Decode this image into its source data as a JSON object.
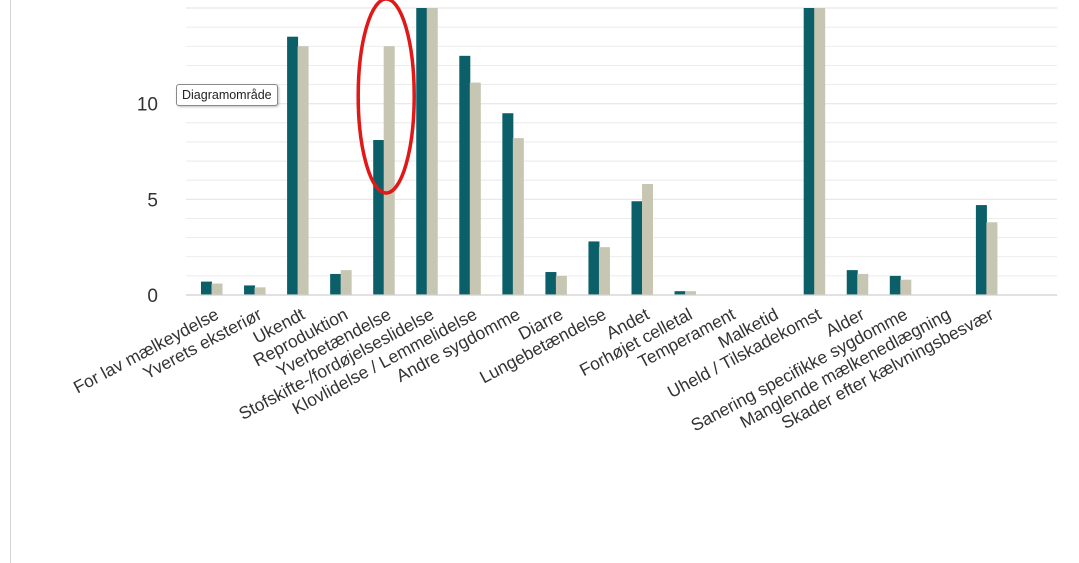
{
  "tooltip": {
    "text": "Diagramområde"
  },
  "colors": {
    "series1": "#0b5f68",
    "series2": "#c6c6b2",
    "highlight": "#e01818",
    "grid": "#e6e6e6",
    "axis": "#cfcfcf"
  },
  "highlight": {
    "shape": "ellipse",
    "category": "Yverbetændelse"
  },
  "chart_data": {
    "type": "bar",
    "title": "",
    "xlabel": "",
    "ylabel": "",
    "ylim": [
      0,
      15
    ],
    "yticks": [
      0,
      5,
      10
    ],
    "grid": true,
    "legend": "none",
    "categories": [
      "For lav mælkeydelse",
      "Yverets eksteriør",
      "Ukendt",
      "Reproduktion",
      "Yverbetændelse",
      "Stofskifte-/fordøjelseslidelse",
      "Klovlidelse / Lemmelidelse",
      "Andre sygdomme",
      "Diarre",
      "Lungebetændelse",
      "Andet",
      "Forhøjet celletal",
      "Temperament",
      "Malketid",
      "Uheld / Tilskadekomst",
      "Alder",
      "Sanering specifikke sygdomme",
      "Manglende mælkenedlægning",
      "Skader efter kælvningsbesvær"
    ],
    "series": [
      {
        "values": [
          0.7,
          0.5,
          13.5,
          1.1,
          8.1,
          15,
          12.5,
          9.5,
          1.2,
          2.8,
          4.9,
          0.2,
          0,
          0,
          15,
          1.3,
          1.0,
          0,
          4.7
        ]
      },
      {
        "values": [
          0.6,
          0.4,
          13.0,
          1.3,
          13.0,
          15,
          11.1,
          8.2,
          1.0,
          2.5,
          5.8,
          0.2,
          0,
          0,
          15,
          1.1,
          0.8,
          0,
          3.8
        ]
      }
    ]
  }
}
